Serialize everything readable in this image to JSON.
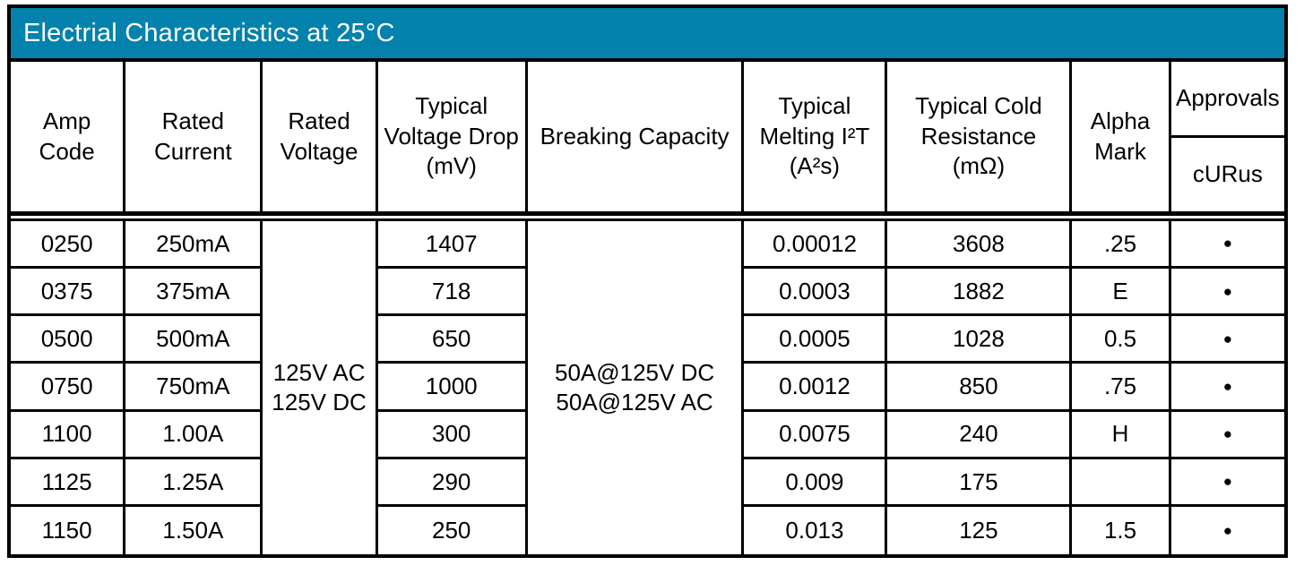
{
  "title": "Electrial Characteristics at 25°C",
  "colors": {
    "title_bar_bg": "#0282AD",
    "title_text": "#FFFFFF",
    "border": "#000000"
  },
  "header": {
    "amp_code": "Amp Code",
    "rated_current": "Rated Current",
    "rated_voltage": "Rated Voltage",
    "voltage_drop": "Typical Voltage Drop (mV)",
    "breaking_capacity": "Breaking Capacity",
    "melting_i2t": "Typical Melting I²T (A²s)",
    "cold_resistance": "Typical Cold Resistance (mΩ)",
    "alpha_mark": "Alpha Mark",
    "approvals": "Approvals",
    "curus": "cURus"
  },
  "merged": {
    "rated_voltage": "125V AC\n125V DC",
    "breaking_capacity": "50A@125V DC\n50A@125V AC"
  },
  "bullet_icon": "●",
  "rows": [
    {
      "amp_code": "0250",
      "rated_current": "250mA",
      "voltage_drop": "1407",
      "melting_i2t": "0.00012",
      "cold_resistance": "3608",
      "alpha_mark": ".25",
      "curus": "●"
    },
    {
      "amp_code": "0375",
      "rated_current": "375mA",
      "voltage_drop": "718",
      "melting_i2t": "0.0003",
      "cold_resistance": "1882",
      "alpha_mark": "E",
      "curus": "●"
    },
    {
      "amp_code": "0500",
      "rated_current": "500mA",
      "voltage_drop": "650",
      "melting_i2t": "0.0005",
      "cold_resistance": "1028",
      "alpha_mark": "0.5",
      "curus": "●"
    },
    {
      "amp_code": "0750",
      "rated_current": "750mA",
      "voltage_drop": "1000",
      "melting_i2t": "0.0012",
      "cold_resistance": "850",
      "alpha_mark": ".75",
      "curus": "●"
    },
    {
      "amp_code": "1100",
      "rated_current": "1.00A",
      "voltage_drop": "300",
      "melting_i2t": "0.0075",
      "cold_resistance": "240",
      "alpha_mark": "H",
      "curus": "●"
    },
    {
      "amp_code": "1125",
      "rated_current": "1.25A",
      "voltage_drop": "290",
      "melting_i2t": "0.009",
      "cold_resistance": "175",
      "alpha_mark": "",
      "curus": "●"
    },
    {
      "amp_code": "1150",
      "rated_current": "1.50A",
      "voltage_drop": "250",
      "melting_i2t": "0.013",
      "cold_resistance": "125",
      "alpha_mark": "1.5",
      "curus": "●"
    }
  ]
}
